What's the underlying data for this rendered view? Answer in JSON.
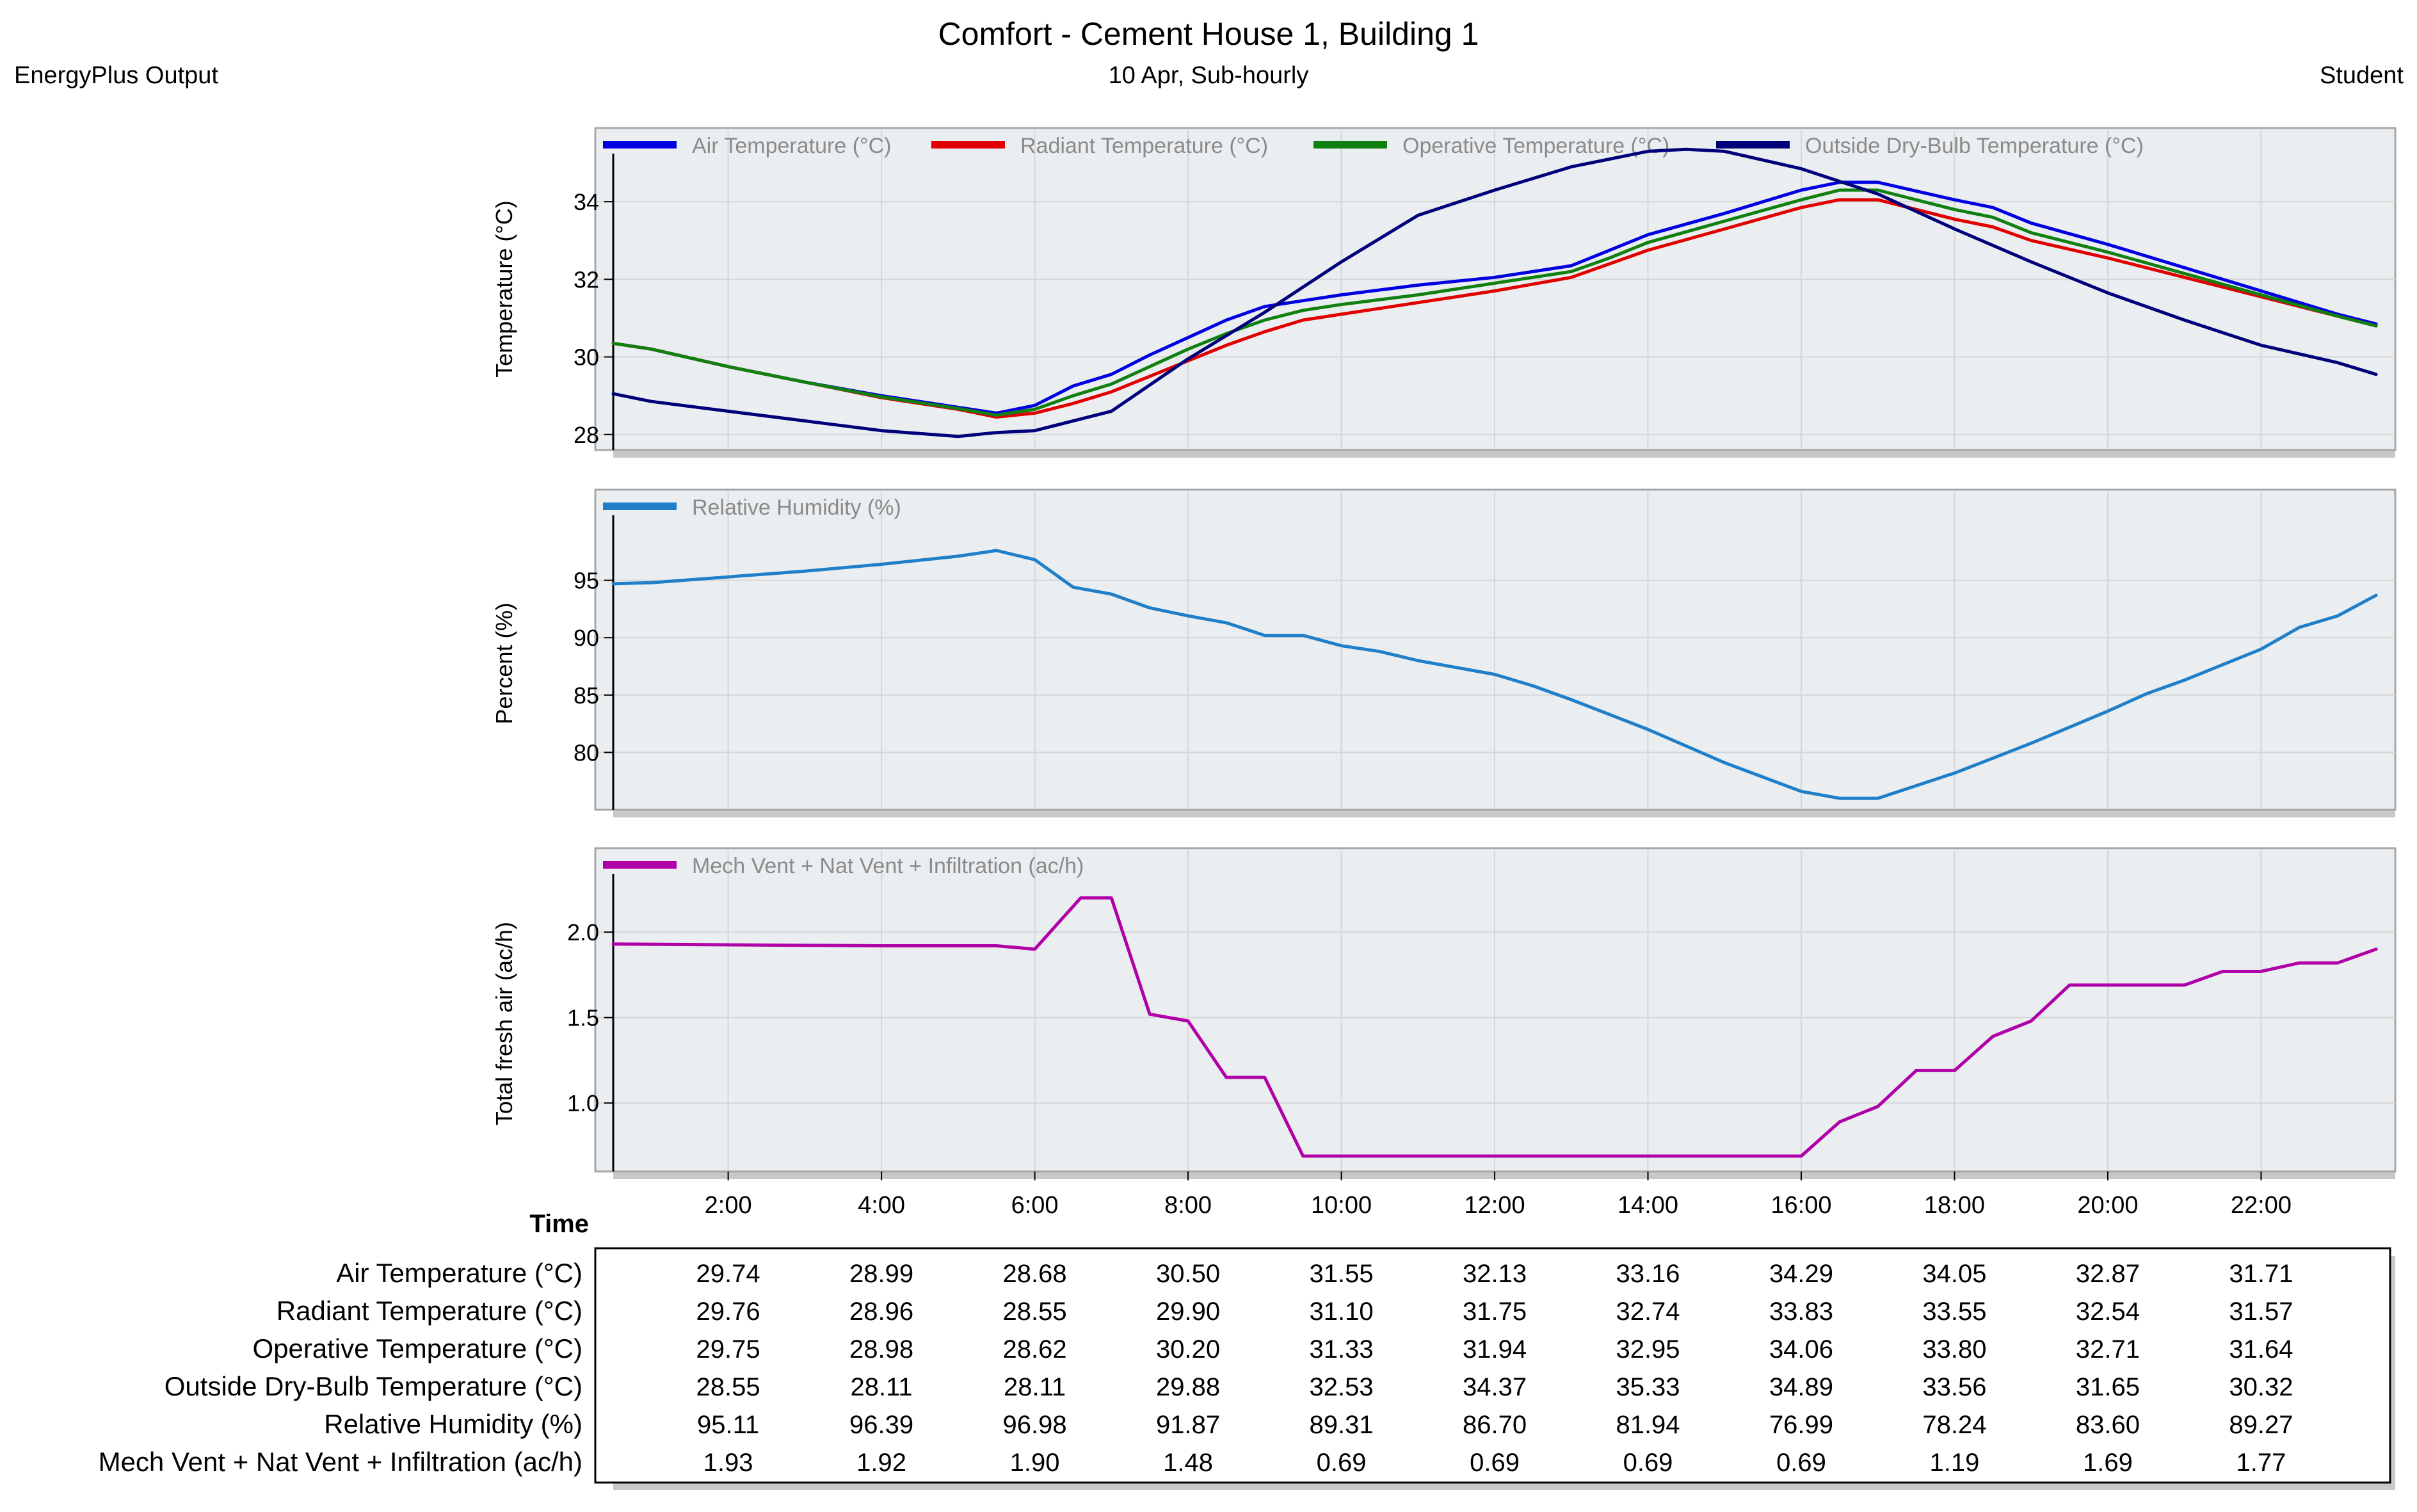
{
  "header": {
    "title": "Comfort - Cement House 1, Building 1",
    "subtitle": "10 Apr, Sub-hourly",
    "left_label": "EnergyPlus Output",
    "right_label": "Student"
  },
  "colors": {
    "air": "#0000e0",
    "radiant": "#e00000",
    "operative": "#108010",
    "outside": "#00007a",
    "humidity": "#1f7fc8",
    "ventilation": "#b000a8",
    "panel_bg": "#ebeef0",
    "panel_border": "#a8a8a8",
    "grid": "#d4d6d8"
  },
  "chart_data": [
    {
      "type": "line",
      "name": "temperature",
      "ylabel": "Temperature (°C)",
      "ylim": [
        27.6,
        35.9
      ],
      "yticks": [
        28,
        30,
        32,
        34
      ],
      "xlim": [
        0.5,
        23.75
      ],
      "series": [
        {
          "name": "Air Temperature (°C)",
          "color_key": "air",
          "x": [
            0.5,
            1,
            2,
            3,
            4,
            5,
            5.5,
            6,
            6.5,
            7,
            7.5,
            8,
            8.5,
            9,
            9.5,
            10,
            11,
            12,
            13,
            13.5,
            14,
            15,
            16,
            16.5,
            17,
            18,
            18.5,
            19,
            20,
            21,
            22,
            23,
            23.5
          ],
          "y": [
            30.35,
            30.2,
            29.75,
            29.35,
            29.0,
            28.7,
            28.55,
            28.75,
            29.25,
            29.55,
            30.05,
            30.5,
            30.95,
            31.3,
            31.45,
            31.6,
            31.85,
            32.05,
            32.35,
            32.75,
            33.15,
            33.7,
            34.3,
            34.5,
            34.5,
            34.05,
            33.85,
            33.45,
            32.9,
            32.3,
            31.7,
            31.1,
            30.85
          ]
        },
        {
          "name": "Radiant Temperature (°C)",
          "color_key": "radiant",
          "x": [
            0.5,
            1,
            2,
            3,
            4,
            5,
            5.5,
            6,
            6.5,
            7,
            7.5,
            8,
            8.5,
            9,
            9.5,
            10,
            11,
            12,
            13,
            13.5,
            14,
            15,
            16,
            16.5,
            17,
            18,
            18.5,
            19,
            20,
            21,
            22,
            23,
            23.5
          ],
          "y": [
            30.35,
            30.2,
            29.75,
            29.35,
            28.95,
            28.65,
            28.45,
            28.55,
            28.8,
            29.1,
            29.5,
            29.9,
            30.3,
            30.65,
            30.95,
            31.1,
            31.4,
            31.7,
            32.05,
            32.4,
            32.75,
            33.3,
            33.85,
            34.05,
            34.05,
            33.55,
            33.35,
            33.0,
            32.55,
            32.05,
            31.55,
            31.05,
            30.8
          ]
        },
        {
          "name": "Operative Temperature (°C)",
          "color_key": "operative",
          "x": [
            0.5,
            1,
            2,
            3,
            4,
            5,
            5.5,
            6,
            6.5,
            7,
            7.5,
            8,
            8.5,
            9,
            9.5,
            10,
            11,
            12,
            13,
            13.5,
            14,
            15,
            16,
            16.5,
            17,
            18,
            18.5,
            19,
            20,
            21,
            22,
            23,
            23.5
          ],
          "y": [
            30.35,
            30.2,
            29.75,
            29.35,
            28.97,
            28.67,
            28.5,
            28.65,
            29.0,
            29.3,
            29.75,
            30.2,
            30.6,
            30.95,
            31.2,
            31.35,
            31.6,
            31.9,
            32.2,
            32.55,
            32.95,
            33.5,
            34.05,
            34.3,
            34.3,
            33.8,
            33.6,
            33.2,
            32.7,
            32.15,
            31.6,
            31.05,
            30.8
          ]
        },
        {
          "name": "Outside Dry-Bulb Temperature (°C)",
          "color_key": "outside",
          "x": [
            0.5,
            1,
            2,
            3,
            4,
            5,
            5.5,
            6,
            7,
            8,
            9,
            10,
            11,
            12,
            13,
            13.5,
            14,
            14.5,
            15,
            16,
            17,
            18,
            19,
            20,
            21,
            22,
            23,
            23.5
          ],
          "y": [
            29.05,
            28.85,
            28.6,
            28.35,
            28.1,
            27.95,
            28.05,
            28.1,
            28.6,
            29.95,
            31.15,
            32.45,
            33.65,
            34.3,
            34.9,
            35.1,
            35.3,
            35.35,
            35.3,
            34.85,
            34.2,
            33.3,
            32.45,
            31.65,
            30.95,
            30.3,
            29.85,
            29.55
          ]
        }
      ]
    },
    {
      "type": "line",
      "name": "humidity",
      "ylabel": "Percent (%)",
      "ylim": [
        75,
        100.5
      ],
      "yticks": [
        80,
        85,
        90,
        95
      ],
      "xlim": [
        0.5,
        23.75
      ],
      "series": [
        {
          "name": "Relative Humidity (%)",
          "color_key": "humidity",
          "x": [
            0.5,
            1,
            2,
            3,
            4,
            5,
            5.5,
            6,
            6.5,
            7,
            7.5,
            8,
            8.5,
            9,
            9.5,
            10,
            10.5,
            11,
            12,
            12.5,
            13,
            14,
            15,
            16,
            16.5,
            17,
            18,
            18.5,
            19,
            20,
            20.5,
            21,
            22,
            22.5,
            23,
            23.5
          ],
          "y": [
            94.7,
            94.8,
            95.3,
            95.8,
            96.4,
            97.1,
            97.6,
            96.8,
            94.4,
            93.8,
            92.6,
            91.9,
            91.3,
            90.2,
            90.2,
            89.3,
            88.8,
            88.0,
            86.8,
            85.8,
            84.6,
            82.0,
            79.1,
            76.6,
            76.0,
            76.0,
            78.2,
            79.5,
            80.8,
            83.6,
            85.1,
            86.3,
            89.0,
            90.9,
            91.9,
            93.7
          ]
        }
      ]
    },
    {
      "type": "line",
      "name": "ventilation",
      "ylabel": "Total fresh air (ac/h)",
      "ylim": [
        0.6,
        2.33
      ],
      "yticks": [
        1.0,
        1.5,
        2.0
      ],
      "xlim": [
        0.5,
        23.75
      ],
      "series": [
        {
          "name": "Mech Vent + Nat Vent + Infiltration (ac/h)",
          "color_key": "ventilation",
          "x": [
            0.5,
            4,
            5.5,
            6,
            6.6,
            7,
            7.5,
            8,
            8.5,
            9,
            9.5,
            10,
            13.5,
            16,
            16.5,
            17,
            17.5,
            18,
            18.5,
            19,
            19.5,
            20,
            21,
            21.5,
            22,
            22.5,
            23,
            23.5
          ],
          "y": [
            1.93,
            1.92,
            1.92,
            1.9,
            2.2,
            2.2,
            1.52,
            1.48,
            1.15,
            1.15,
            0.69,
            0.69,
            0.69,
            0.69,
            0.89,
            0.98,
            1.19,
            1.19,
            1.39,
            1.48,
            1.69,
            1.69,
            1.69,
            1.77,
            1.77,
            1.82,
            1.82,
            1.9
          ]
        }
      ]
    }
  ],
  "x_axis": {
    "label": "Time",
    "ticks": [
      2,
      4,
      6,
      8,
      10,
      12,
      14,
      16,
      18,
      20,
      22
    ],
    "tick_labels": [
      "2:00",
      "4:00",
      "6:00",
      "8:00",
      "10:00",
      "12:00",
      "14:00",
      "16:00",
      "18:00",
      "20:00",
      "22:00"
    ]
  },
  "table": {
    "rows": [
      {
        "label": "Air Temperature (°C)",
        "values": [
          "29.74",
          "28.99",
          "28.68",
          "30.50",
          "31.55",
          "32.13",
          "33.16",
          "34.29",
          "34.05",
          "32.87",
          "31.71"
        ]
      },
      {
        "label": "Radiant Temperature (°C)",
        "values": [
          "29.76",
          "28.96",
          "28.55",
          "29.90",
          "31.10",
          "31.75",
          "32.74",
          "33.83",
          "33.55",
          "32.54",
          "31.57"
        ]
      },
      {
        "label": "Operative Temperature (°C)",
        "values": [
          "29.75",
          "28.98",
          "28.62",
          "30.20",
          "31.33",
          "31.94",
          "32.95",
          "34.06",
          "33.80",
          "32.71",
          "31.64"
        ]
      },
      {
        "label": "Outside Dry-Bulb Temperature (°C)",
        "values": [
          "28.55",
          "28.11",
          "28.11",
          "29.88",
          "32.53",
          "34.37",
          "35.33",
          "34.89",
          "33.56",
          "31.65",
          "30.32"
        ]
      },
      {
        "label": "Relative Humidity (%)",
        "values": [
          "95.11",
          "96.39",
          "96.98",
          "91.87",
          "89.31",
          "86.70",
          "81.94",
          "76.99",
          "78.24",
          "83.60",
          "89.27"
        ]
      },
      {
        "label": "Mech Vent + Nat Vent + Infiltration (ac/h)",
        "values": [
          "1.93",
          "1.92",
          "1.90",
          "1.48",
          "0.69",
          "0.69",
          "0.69",
          "0.69",
          "1.19",
          "1.69",
          "1.77"
        ]
      }
    ]
  }
}
